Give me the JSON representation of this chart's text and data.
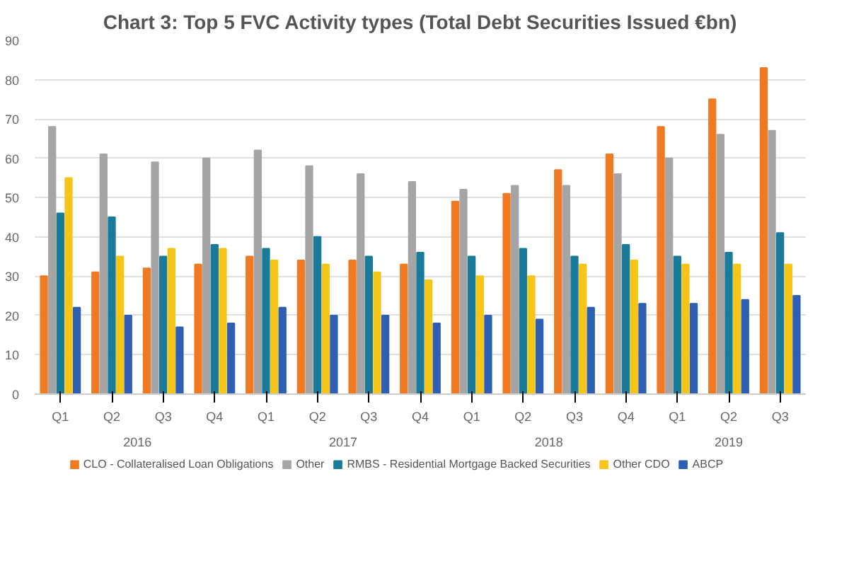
{
  "chart_data": {
    "type": "bar",
    "title": "Chart 3: Top 5 FVC Activity types (Total Debt Securities Issued €bn)",
    "categories": [
      "Q1",
      "Q2",
      "Q3",
      "Q4",
      "Q1",
      "Q2",
      "Q3",
      "Q4",
      "Q1",
      "Q2",
      "Q3",
      "Q4",
      "Q1",
      "Q2",
      "Q3"
    ],
    "annotations": [
      "2016",
      "2017",
      "2018",
      "2019"
    ],
    "series": [
      {
        "name": "CLO - Collateralised Loan Obligations",
        "color": "#f07a22",
        "values": [
          30,
          31,
          32,
          33,
          35,
          34,
          34,
          33,
          49,
          51,
          57,
          61,
          68,
          75,
          83
        ]
      },
      {
        "name": "Other",
        "color": "#a5a5a5",
        "values": [
          68,
          61,
          59,
          60,
          62,
          58,
          56,
          54,
          52,
          53,
          53,
          56,
          60,
          66,
          67
        ]
      },
      {
        "name": "RMBS - Residential Mortgage Backed Securities",
        "color": "#1a7a9a",
        "values": [
          46,
          45,
          35,
          38,
          37,
          40,
          35,
          36,
          35,
          37,
          35,
          38,
          35,
          36,
          41
        ]
      },
      {
        "name": "Other CDO",
        "color": "#f5c518",
        "values": [
          55,
          35,
          37,
          37,
          34,
          33,
          31,
          29,
          30,
          30,
          33,
          34,
          33,
          33,
          33
        ]
      },
      {
        "name": "ABCP",
        "color": "#2f5fb3",
        "values": [
          22,
          20,
          17,
          18,
          22,
          20,
          20,
          18,
          20,
          19,
          22,
          23,
          23,
          24,
          25
        ]
      }
    ],
    "ylim": [
      0,
      90
    ],
    "yticks": [
      0,
      10,
      20,
      30,
      40,
      50,
      60,
      70,
      80,
      90
    ],
    "grid": "y",
    "legend": "bottom"
  }
}
